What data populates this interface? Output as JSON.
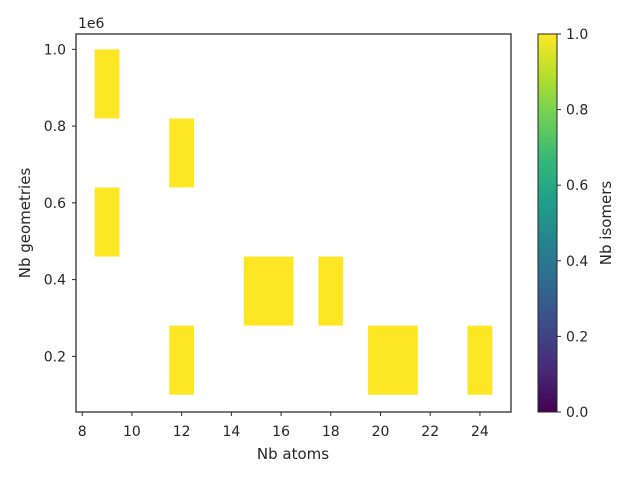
{
  "chart_data": {
    "type": "heatmap",
    "xlabel": "Nb atoms",
    "ylabel": "Nb geometries",
    "y_offset_label": "1e6",
    "xlim": [
      7.75,
      25.25
    ],
    "ylim": [
      55000,
      1040000
    ],
    "x_ticks": [
      8,
      10,
      12,
      14,
      16,
      18,
      20,
      22,
      24
    ],
    "y_ticks": [
      200000,
      400000,
      600000,
      800000,
      1000000
    ],
    "y_tick_labels": [
      "0.2",
      "0.4",
      "0.6",
      "0.8",
      "1.0"
    ],
    "cells": [
      {
        "x0": 8.5,
        "x1": 9.5,
        "y0": 820000,
        "y1": 1000000,
        "value": 1.0
      },
      {
        "x0": 8.5,
        "x1": 9.5,
        "y0": 460000,
        "y1": 640000,
        "value": 1.0
      },
      {
        "x0": 11.5,
        "x1": 12.5,
        "y0": 640000,
        "y1": 820000,
        "value": 1.0
      },
      {
        "x0": 11.5,
        "x1": 12.5,
        "y0": 100000,
        "y1": 280000,
        "value": 1.0
      },
      {
        "x0": 14.5,
        "x1": 16.5,
        "y0": 280000,
        "y1": 460000,
        "value": 1.0
      },
      {
        "x0": 17.5,
        "x1": 18.5,
        "y0": 280000,
        "y1": 460000,
        "value": 1.0
      },
      {
        "x0": 19.5,
        "x1": 21.5,
        "y0": 100000,
        "y1": 280000,
        "value": 1.0
      },
      {
        "x0": 23.5,
        "x1": 24.5,
        "y0": 100000,
        "y1": 280000,
        "value": 1.0
      }
    ],
    "colorbar": {
      "label": "Nb isomers",
      "range": [
        0.0,
        1.0
      ],
      "ticks": [
        0.0,
        0.2,
        0.4,
        0.6,
        0.8,
        1.0
      ],
      "tick_labels": [
        "0.0",
        "0.2",
        "0.4",
        "0.6",
        "0.8",
        "1.0"
      ],
      "colormap": "viridis",
      "stops": [
        "#440154",
        "#482878",
        "#3e4989",
        "#31688e",
        "#26828e",
        "#1f9e89",
        "#35b779",
        "#6ece58",
        "#b5de2b",
        "#fde725"
      ]
    },
    "grid": false
  }
}
